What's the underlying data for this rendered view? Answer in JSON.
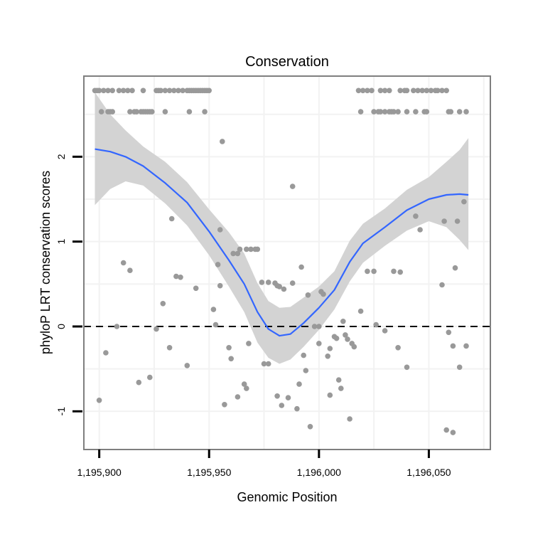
{
  "chart_data": {
    "type": "scatter",
    "title": "Conservation",
    "xlabel": "Genomic Position",
    "ylabel": "phyloP LRT conservation scores",
    "xlim": [
      1195893,
      1196078
    ],
    "ylim": [
      -1.45,
      2.95
    ],
    "x_ticks": [
      1195900,
      1195950,
      1196000,
      1196050
    ],
    "x_tick_labels": [
      "1,195,900",
      "1,195,950",
      "1,196,000",
      "1,196,050"
    ],
    "y_ticks": [
      -1,
      0,
      1,
      2
    ],
    "y_tick_labels": [
      "-1",
      "0",
      "1",
      "2"
    ],
    "reference_line": {
      "y": 0,
      "style": "dashed",
      "color": "#000000"
    },
    "grid": true,
    "colors": {
      "points": "#999999",
      "smooth_line": "#3366ff",
      "ribbon": "#d3d3d3",
      "panel_border": "#7f7f7f",
      "grid": "#f2f2f2"
    },
    "points": [
      {
        "x": 1195898,
        "y": 2.78
      },
      {
        "x": 1195899,
        "y": 2.78
      },
      {
        "x": 1195900,
        "y": 2.78
      },
      {
        "x": 1195902,
        "y": 2.78
      },
      {
        "x": 1195904,
        "y": 2.78
      },
      {
        "x": 1195906,
        "y": 2.78
      },
      {
        "x": 1195909,
        "y": 2.78
      },
      {
        "x": 1195911,
        "y": 2.78
      },
      {
        "x": 1195913,
        "y": 2.78
      },
      {
        "x": 1195915,
        "y": 2.78
      },
      {
        "x": 1195920,
        "y": 2.78
      },
      {
        "x": 1195926,
        "y": 2.78
      },
      {
        "x": 1195927,
        "y": 2.78
      },
      {
        "x": 1195928,
        "y": 2.78
      },
      {
        "x": 1195930,
        "y": 2.78
      },
      {
        "x": 1195932,
        "y": 2.78
      },
      {
        "x": 1195934,
        "y": 2.78
      },
      {
        "x": 1195936,
        "y": 2.78
      },
      {
        "x": 1195938,
        "y": 2.78
      },
      {
        "x": 1195940,
        "y": 2.78
      },
      {
        "x": 1195941,
        "y": 2.78
      },
      {
        "x": 1195942,
        "y": 2.78
      },
      {
        "x": 1195943,
        "y": 2.78
      },
      {
        "x": 1195944,
        "y": 2.78
      },
      {
        "x": 1195945,
        "y": 2.78
      },
      {
        "x": 1195946,
        "y": 2.78
      },
      {
        "x": 1195947,
        "y": 2.78
      },
      {
        "x": 1195948,
        "y": 2.78
      },
      {
        "x": 1195949,
        "y": 2.78
      },
      {
        "x": 1195950,
        "y": 2.78
      },
      {
        "x": 1196018,
        "y": 2.78
      },
      {
        "x": 1196020,
        "y": 2.78
      },
      {
        "x": 1196022,
        "y": 2.78
      },
      {
        "x": 1196024,
        "y": 2.78
      },
      {
        "x": 1196028,
        "y": 2.78
      },
      {
        "x": 1196030,
        "y": 2.78
      },
      {
        "x": 1196032,
        "y": 2.78
      },
      {
        "x": 1196037,
        "y": 2.78
      },
      {
        "x": 1196039,
        "y": 2.78
      },
      {
        "x": 1196040,
        "y": 2.78
      },
      {
        "x": 1196043,
        "y": 2.78
      },
      {
        "x": 1196045,
        "y": 2.78
      },
      {
        "x": 1196047,
        "y": 2.78
      },
      {
        "x": 1196049,
        "y": 2.78
      },
      {
        "x": 1196051,
        "y": 2.78
      },
      {
        "x": 1196053,
        "y": 2.78
      },
      {
        "x": 1196054,
        "y": 2.78
      },
      {
        "x": 1196056,
        "y": 2.78
      },
      {
        "x": 1196058,
        "y": 2.78
      },
      {
        "x": 1195901,
        "y": 2.53
      },
      {
        "x": 1195904,
        "y": 2.53
      },
      {
        "x": 1195905,
        "y": 2.53
      },
      {
        "x": 1195906,
        "y": 2.53
      },
      {
        "x": 1195914,
        "y": 2.53
      },
      {
        "x": 1195916,
        "y": 2.53
      },
      {
        "x": 1195917,
        "y": 2.53
      },
      {
        "x": 1195919,
        "y": 2.53
      },
      {
        "x": 1195920,
        "y": 2.53
      },
      {
        "x": 1195921,
        "y": 2.53
      },
      {
        "x": 1195922,
        "y": 2.53
      },
      {
        "x": 1195923,
        "y": 2.53
      },
      {
        "x": 1195924,
        "y": 2.53
      },
      {
        "x": 1195930,
        "y": 2.53
      },
      {
        "x": 1195941,
        "y": 2.53
      },
      {
        "x": 1195948,
        "y": 2.53
      },
      {
        "x": 1196019,
        "y": 2.53
      },
      {
        "x": 1196025,
        "y": 2.53
      },
      {
        "x": 1196027,
        "y": 2.53
      },
      {
        "x": 1196028,
        "y": 2.53
      },
      {
        "x": 1196030,
        "y": 2.53
      },
      {
        "x": 1196032,
        "y": 2.53
      },
      {
        "x": 1196033,
        "y": 2.53
      },
      {
        "x": 1196034,
        "y": 2.53
      },
      {
        "x": 1196036,
        "y": 2.53
      },
      {
        "x": 1196040,
        "y": 2.53
      },
      {
        "x": 1196044,
        "y": 2.53
      },
      {
        "x": 1196048,
        "y": 2.53
      },
      {
        "x": 1196049,
        "y": 2.53
      },
      {
        "x": 1196059,
        "y": 2.53
      },
      {
        "x": 1196060,
        "y": 2.53
      },
      {
        "x": 1196064,
        "y": 2.53
      },
      {
        "x": 1196067,
        "y": 2.53
      },
      {
        "x": 1195956,
        "y": 2.18
      },
      {
        "x": 1195988,
        "y": 1.65
      },
      {
        "x": 1195933,
        "y": 1.27
      },
      {
        "x": 1195955,
        "y": 1.14
      },
      {
        "x": 1195961,
        "y": 0.86
      },
      {
        "x": 1195963,
        "y": 0.86
      },
      {
        "x": 1195964,
        "y": 0.91
      },
      {
        "x": 1195967,
        "y": 0.91
      },
      {
        "x": 1195969,
        "y": 0.91
      },
      {
        "x": 1195971,
        "y": 0.91
      },
      {
        "x": 1195972,
        "y": 0.91
      },
      {
        "x": 1195911,
        "y": 0.75
      },
      {
        "x": 1195914,
        "y": 0.66
      },
      {
        "x": 1195954,
        "y": 0.73
      },
      {
        "x": 1195935,
        "y": 0.59
      },
      {
        "x": 1195937,
        "y": 0.58
      },
      {
        "x": 1195955,
        "y": 0.48
      },
      {
        "x": 1195944,
        "y": 0.45
      },
      {
        "x": 1195974,
        "y": 0.52
      },
      {
        "x": 1195977,
        "y": 0.52
      },
      {
        "x": 1195980,
        "y": 0.51
      },
      {
        "x": 1195981,
        "y": 0.48
      },
      {
        "x": 1195982,
        "y": 0.47
      },
      {
        "x": 1195984,
        "y": 0.44
      },
      {
        "x": 1195988,
        "y": 0.51
      },
      {
        "x": 1195992,
        "y": 0.7
      },
      {
        "x": 1195995,
        "y": 0.37
      },
      {
        "x": 1196001,
        "y": 0.41
      },
      {
        "x": 1196002,
        "y": 0.38
      },
      {
        "x": 1195929,
        "y": 0.27
      },
      {
        "x": 1195952,
        "y": 0.2
      },
      {
        "x": 1195953,
        "y": 0.02
      },
      {
        "x": 1195908,
        "y": 0.0
      },
      {
        "x": 1195926,
        "y": -0.03
      },
      {
        "x": 1195959,
        "y": -0.25
      },
      {
        "x": 1195960,
        "y": -0.38
      },
      {
        "x": 1195968,
        "y": -0.2
      },
      {
        "x": 1195966,
        "y": -0.68
      },
      {
        "x": 1195967,
        "y": -0.73
      },
      {
        "x": 1195963,
        "y": -0.83
      },
      {
        "x": 1195957,
        "y": -0.92
      },
      {
        "x": 1195975,
        "y": -0.44
      },
      {
        "x": 1195977,
        "y": -0.44
      },
      {
        "x": 1195932,
        "y": -0.25
      },
      {
        "x": 1195940,
        "y": -0.46
      },
      {
        "x": 1195998,
        "y": 0.0
      },
      {
        "x": 1196000,
        "y": 0.0
      },
      {
        "x": 1196000,
        "y": -0.2
      },
      {
        "x": 1196004,
        "y": -0.35
      },
      {
        "x": 1196005,
        "y": -0.26
      },
      {
        "x": 1196007,
        "y": -0.12
      },
      {
        "x": 1196008,
        "y": -0.14
      },
      {
        "x": 1196009,
        "y": -0.63
      },
      {
        "x": 1196010,
        "y": -0.73
      },
      {
        "x": 1196011,
        "y": 0.06
      },
      {
        "x": 1196012,
        "y": -0.1
      },
      {
        "x": 1196013,
        "y": -0.15
      },
      {
        "x": 1196014,
        "y": -1.09
      },
      {
        "x": 1196015,
        "y": -0.2
      },
      {
        "x": 1196016,
        "y": -0.24
      },
      {
        "x": 1196005,
        "y": -0.81
      },
      {
        "x": 1195996,
        "y": -1.18
      },
      {
        "x": 1195994,
        "y": -0.52
      },
      {
        "x": 1195991,
        "y": -0.68
      },
      {
        "x": 1195990,
        "y": -0.97
      },
      {
        "x": 1195986,
        "y": -0.84
      },
      {
        "x": 1195983,
        "y": -0.93
      },
      {
        "x": 1195981,
        "y": -0.82
      },
      {
        "x": 1195993,
        "y": -0.34
      },
      {
        "x": 1195903,
        "y": -0.31
      },
      {
        "x": 1195900,
        "y": -0.87
      },
      {
        "x": 1195918,
        "y": -0.66
      },
      {
        "x": 1195923,
        "y": -0.6
      },
      {
        "x": 1196019,
        "y": 0.18
      },
      {
        "x": 1196022,
        "y": 0.65
      },
      {
        "x": 1196025,
        "y": 0.65
      },
      {
        "x": 1196026,
        "y": 0.02
      },
      {
        "x": 1196030,
        "y": -0.05
      },
      {
        "x": 1196034,
        "y": 0.65
      },
      {
        "x": 1196037,
        "y": 0.64
      },
      {
        "x": 1196036,
        "y": -0.25
      },
      {
        "x": 1196040,
        "y": -0.48
      },
      {
        "x": 1196044,
        "y": 1.3
      },
      {
        "x": 1196046,
        "y": 1.14
      },
      {
        "x": 1196056,
        "y": 0.49
      },
      {
        "x": 1196057,
        "y": 1.24
      },
      {
        "x": 1196058,
        "y": -1.22
      },
      {
        "x": 1196061,
        "y": -1.25
      },
      {
        "x": 1196062,
        "y": 0.69
      },
      {
        "x": 1196063,
        "y": 1.24
      },
      {
        "x": 1196064,
        "y": -0.48
      },
      {
        "x": 1196066,
        "y": 1.47
      },
      {
        "x": 1196067,
        "y": -0.23
      },
      {
        "x": 1196059,
        "y": -0.07
      },
      {
        "x": 1196061,
        "y": -0.23
      }
    ],
    "smooth": [
      {
        "x": 1195898,
        "y": 2.09,
        "lo": 1.43,
        "hi": 2.76
      },
      {
        "x": 1195905,
        "y": 2.06,
        "lo": 1.62,
        "hi": 2.5
      },
      {
        "x": 1195912,
        "y": 2.0,
        "lo": 1.71,
        "hi": 2.31
      },
      {
        "x": 1195920,
        "y": 1.89,
        "lo": 1.66,
        "hi": 2.12
      },
      {
        "x": 1195930,
        "y": 1.69,
        "lo": 1.45,
        "hi": 1.94
      },
      {
        "x": 1195940,
        "y": 1.46,
        "lo": 1.19,
        "hi": 1.7
      },
      {
        "x": 1195950,
        "y": 1.12,
        "lo": 0.84,
        "hi": 1.38
      },
      {
        "x": 1195959,
        "y": 0.78,
        "lo": 0.47,
        "hi": 1.11
      },
      {
        "x": 1195966,
        "y": 0.5,
        "lo": 0.17,
        "hi": 0.86
      },
      {
        "x": 1195972,
        "y": 0.17,
        "lo": -0.19,
        "hi": 0.51
      },
      {
        "x": 1195977,
        "y": -0.03,
        "lo": -0.37,
        "hi": 0.3
      },
      {
        "x": 1195982,
        "y": -0.11,
        "lo": -0.44,
        "hi": 0.22
      },
      {
        "x": 1195987,
        "y": -0.09,
        "lo": -0.39,
        "hi": 0.23
      },
      {
        "x": 1195993,
        "y": 0.04,
        "lo": -0.24,
        "hi": 0.34
      },
      {
        "x": 1196000,
        "y": 0.22,
        "lo": -0.04,
        "hi": 0.47
      },
      {
        "x": 1196007,
        "y": 0.43,
        "lo": 0.2,
        "hi": 0.65
      },
      {
        "x": 1196014,
        "y": 0.76,
        "lo": 0.53,
        "hi": 1.01
      },
      {
        "x": 1196020,
        "y": 0.98,
        "lo": 0.75,
        "hi": 1.21
      },
      {
        "x": 1196030,
        "y": 1.17,
        "lo": 0.95,
        "hi": 1.39
      },
      {
        "x": 1196040,
        "y": 1.37,
        "lo": 1.13,
        "hi": 1.61
      },
      {
        "x": 1196050,
        "y": 1.5,
        "lo": 1.24,
        "hi": 1.76
      },
      {
        "x": 1196058,
        "y": 1.55,
        "lo": 1.17,
        "hi": 1.94
      },
      {
        "x": 1196064,
        "y": 1.56,
        "lo": 1.02,
        "hi": 2.08
      },
      {
        "x": 1196068,
        "y": 1.55,
        "lo": 0.9,
        "hi": 2.22
      }
    ]
  }
}
